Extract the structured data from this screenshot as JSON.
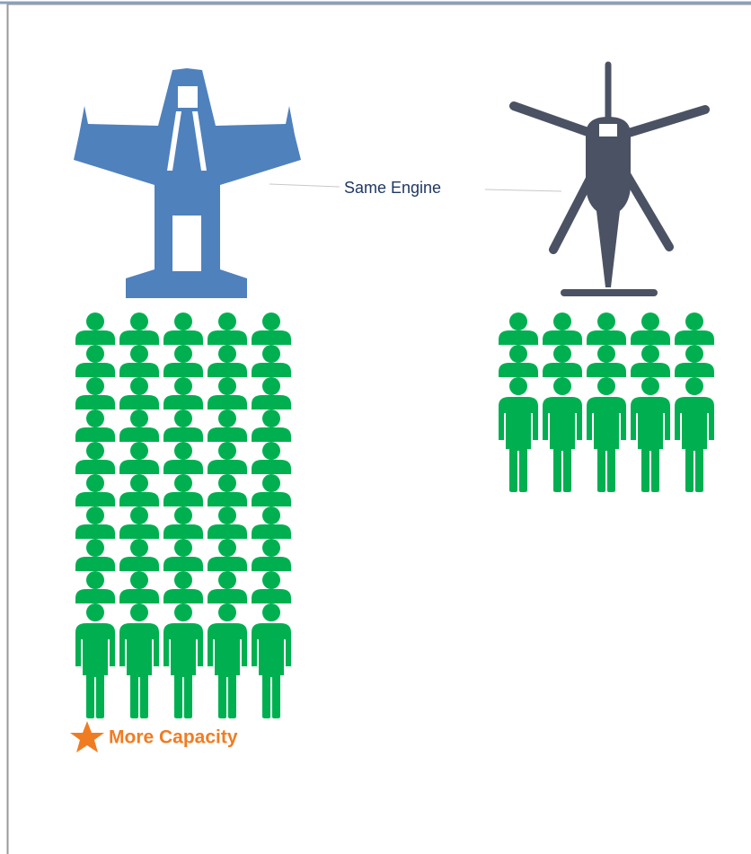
{
  "labels": {
    "connector": "Same Engine",
    "highlight": "More Capacity"
  }
}
